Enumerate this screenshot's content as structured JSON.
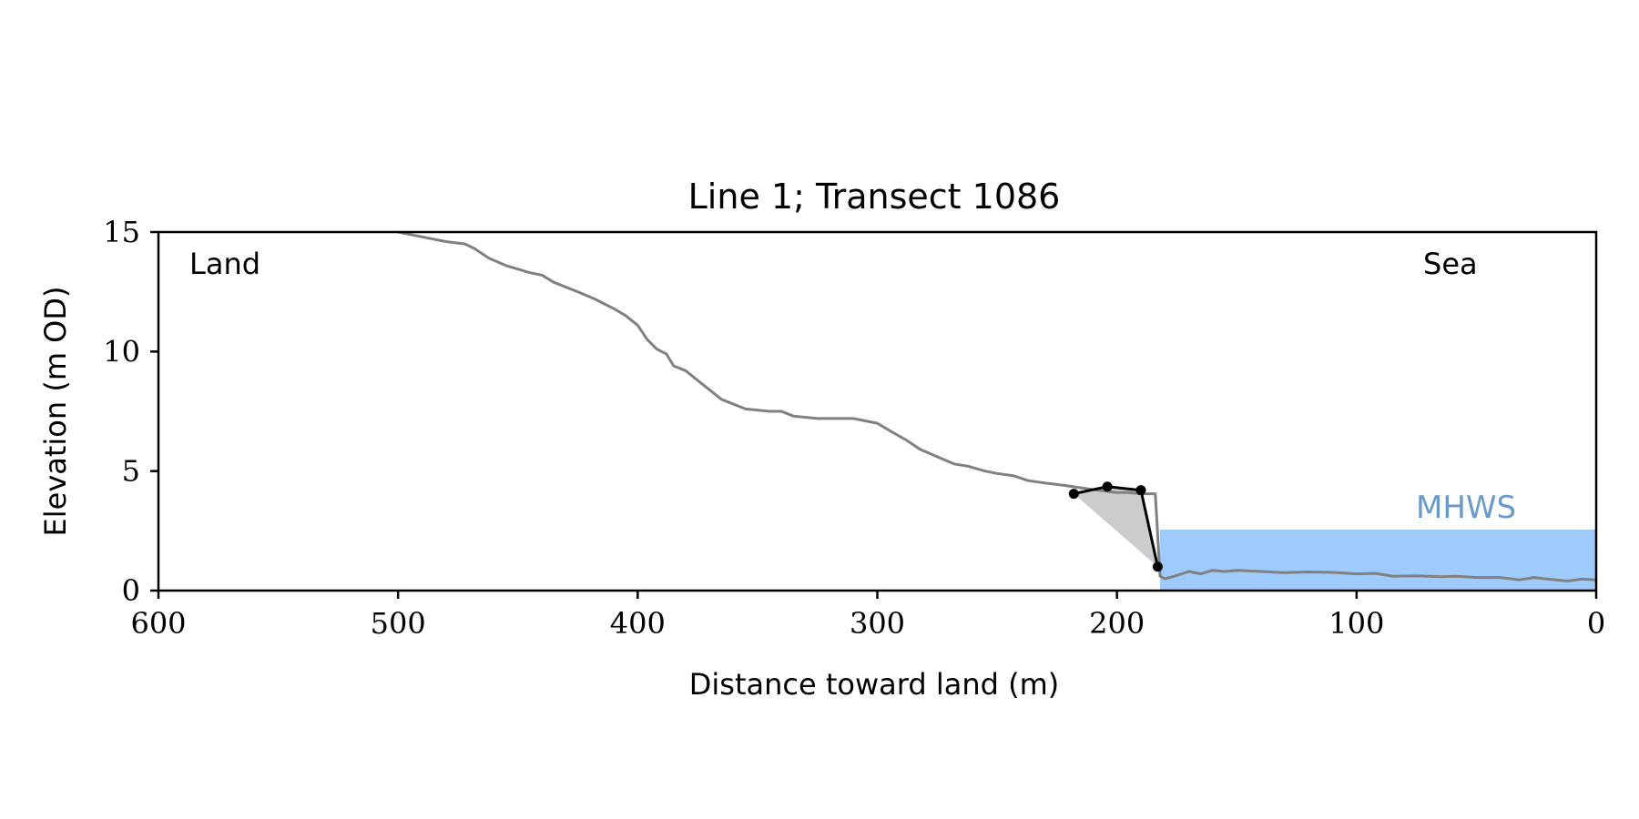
{
  "chart_data": {
    "type": "line",
    "title": "Line 1; Transect 1086",
    "xlabel": "Distance toward land (m)",
    "ylabel": "Elevation (m OD)",
    "xlim": [
      600,
      0
    ],
    "ylim": [
      0,
      15
    ],
    "xticks": [
      600,
      500,
      400,
      300,
      200,
      100,
      0
    ],
    "yticks": [
      0,
      5,
      10,
      15
    ],
    "grid": false,
    "annotations": {
      "land": "Land",
      "sea": "Sea",
      "mhws": "MHWS"
    },
    "mhws": {
      "level": 2.55,
      "x_from": 182,
      "x_to": 0,
      "color": "#9ecbfb",
      "label_color": "#6a9ac8"
    },
    "profile": {
      "color": "#808080",
      "points": [
        [
          500,
          15.0
        ],
        [
          490,
          14.8
        ],
        [
          480,
          14.6
        ],
        [
          472,
          14.5
        ],
        [
          468,
          14.3
        ],
        [
          462,
          13.9
        ],
        [
          455,
          13.6
        ],
        [
          445,
          13.3
        ],
        [
          440,
          13.2
        ],
        [
          435,
          12.9
        ],
        [
          425,
          12.5
        ],
        [
          418,
          12.2
        ],
        [
          410,
          11.8
        ],
        [
          405,
          11.5
        ],
        [
          400,
          11.1
        ],
        [
          396,
          10.5
        ],
        [
          392,
          10.1
        ],
        [
          388,
          9.9
        ],
        [
          385,
          9.4
        ],
        [
          380,
          9.2
        ],
        [
          375,
          8.8
        ],
        [
          370,
          8.4
        ],
        [
          365,
          8.0
        ],
        [
          360,
          7.8
        ],
        [
          355,
          7.6
        ],
        [
          345,
          7.5
        ],
        [
          340,
          7.5
        ],
        [
          335,
          7.3
        ],
        [
          325,
          7.2
        ],
        [
          310,
          7.2
        ],
        [
          300,
          7.0
        ],
        [
          295,
          6.7
        ],
        [
          288,
          6.3
        ],
        [
          282,
          5.9
        ],
        [
          275,
          5.6
        ],
        [
          268,
          5.3
        ],
        [
          262,
          5.2
        ],
        [
          255,
          5.0
        ],
        [
          250,
          4.9
        ],
        [
          243,
          4.8
        ],
        [
          237,
          4.6
        ],
        [
          230,
          4.5
        ],
        [
          222,
          4.4
        ],
        [
          215,
          4.3
        ],
        [
          208,
          4.2
        ],
        [
          200,
          4.1
        ],
        [
          195,
          4.1
        ],
        [
          190,
          4.05
        ],
        [
          184,
          4.05
        ],
        [
          182,
          0.6
        ],
        [
          180,
          0.5
        ],
        [
          176,
          0.6
        ],
        [
          170,
          0.8
        ],
        [
          165,
          0.7
        ],
        [
          160,
          0.85
        ],
        [
          155,
          0.8
        ],
        [
          150,
          0.85
        ],
        [
          140,
          0.8
        ],
        [
          130,
          0.75
        ],
        [
          120,
          0.78
        ],
        [
          110,
          0.76
        ],
        [
          100,
          0.7
        ],
        [
          92,
          0.72
        ],
        [
          85,
          0.6
        ],
        [
          75,
          0.62
        ],
        [
          65,
          0.58
        ],
        [
          58,
          0.6
        ],
        [
          50,
          0.55
        ],
        [
          40,
          0.55
        ],
        [
          32,
          0.45
        ],
        [
          26,
          0.55
        ],
        [
          20,
          0.48
        ],
        [
          12,
          0.4
        ],
        [
          6,
          0.48
        ],
        [
          0,
          0.45
        ]
      ]
    },
    "cliff": {
      "color": "#000000",
      "fill_color": "#cccccc",
      "points": [
        [
          218,
          4.05
        ],
        [
          204,
          4.35
        ],
        [
          190,
          4.2
        ],
        [
          183,
          1.0
        ]
      ],
      "markers": [
        [
          218,
          4.05
        ],
        [
          204,
          4.35
        ],
        [
          190,
          4.2
        ],
        [
          183,
          1.0
        ]
      ]
    }
  }
}
